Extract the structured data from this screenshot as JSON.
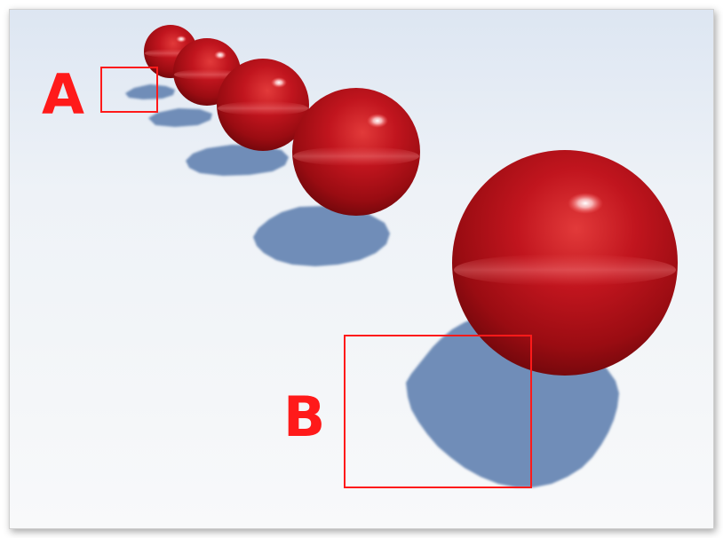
{
  "labels": {
    "a": "A",
    "b": "B"
  },
  "colors": {
    "annotation": "#ff1a1a",
    "sphere": "#b5121b",
    "sphere_highlight": "#ff6b6b",
    "sphere_dark": "#5c0508",
    "shadow": "#6f8db8",
    "floor_top": "#e3ebf5",
    "floor_bottom": "#f7f8fa"
  },
  "scene": {
    "objects": [
      "red-sphere",
      "red-sphere",
      "red-sphere",
      "red-sphere",
      "red-sphere"
    ],
    "annotation_boxes": 2
  }
}
